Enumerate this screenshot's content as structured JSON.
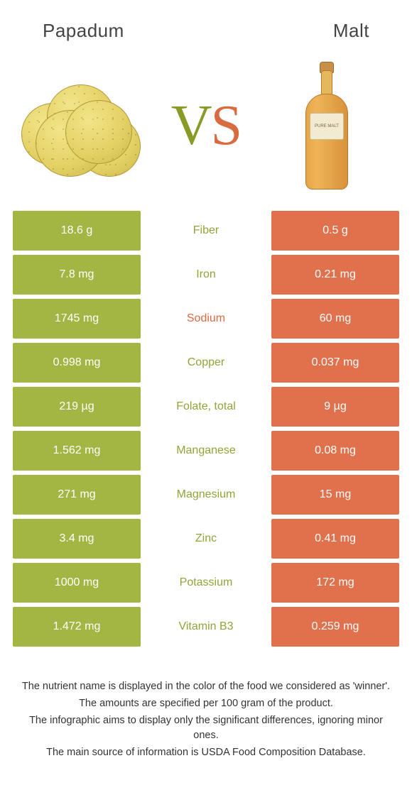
{
  "header": {
    "left_title": "Papadum",
    "right_title": "Malt"
  },
  "vs": {
    "v": "V",
    "s": "S"
  },
  "colors": {
    "left_cell_bg": "#a3b543",
    "right_cell_bg": "#e1714c",
    "mid_green": "#8fa538",
    "mid_orange": "#d96c3f",
    "background": "#ffffff"
  },
  "bottle_label": "PURE MALT",
  "nutrients": [
    {
      "name": "Fiber",
      "left": "18.6 g",
      "right": "0.5 g",
      "winner": "left"
    },
    {
      "name": "Iron",
      "left": "7.8 mg",
      "right": "0.21 mg",
      "winner": "left"
    },
    {
      "name": "Sodium",
      "left": "1745 mg",
      "right": "60 mg",
      "winner": "right"
    },
    {
      "name": "Copper",
      "left": "0.998 mg",
      "right": "0.037 mg",
      "winner": "left"
    },
    {
      "name": "Folate, total",
      "left": "219 µg",
      "right": "9 µg",
      "winner": "left"
    },
    {
      "name": "Manganese",
      "left": "1.562 mg",
      "right": "0.08 mg",
      "winner": "left"
    },
    {
      "name": "Magnesium",
      "left": "271 mg",
      "right": "15 mg",
      "winner": "left"
    },
    {
      "name": "Zinc",
      "left": "3.4 mg",
      "right": "0.41 mg",
      "winner": "left"
    },
    {
      "name": "Potassium",
      "left": "1000 mg",
      "right": "172 mg",
      "winner": "left"
    },
    {
      "name": "Vitamin B3",
      "left": "1.472 mg",
      "right": "0.259 mg",
      "winner": "left"
    }
  ],
  "footnotes": [
    "The nutrient name is displayed in the color of the food we considered as 'winner'.",
    "The amounts are specified per 100 gram of the product.",
    "The infographic aims to display only the significant differences, ignoring minor ones.",
    "The main source of information is USDA Food Composition Database."
  ]
}
